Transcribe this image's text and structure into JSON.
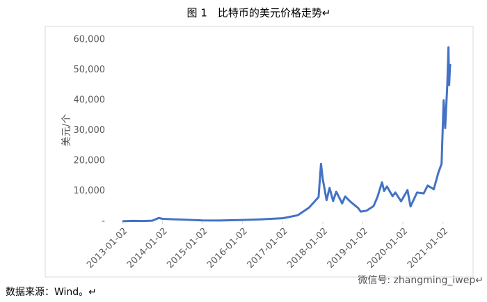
{
  "chart_data": {
    "type": "line",
    "title": "图 1　比特币的美元价格走势↵",
    "y_label": "美元/个",
    "source": "数据来源：Wind。↵",
    "watermark": "微信号: zhangming_iwep↵",
    "x": [
      "2013-01-02",
      "2013-04-09",
      "2013-07-05",
      "2013-10-01",
      "2013-11-30",
      "2014-01-02",
      "2014-06-01",
      "2015-01-02",
      "2015-06-01",
      "2016-01-02",
      "2016-06-17",
      "2017-01-02",
      "2017-05-20",
      "2017-08-30",
      "2017-11-25",
      "2017-12-17",
      "2018-01-02",
      "2018-02-06",
      "2018-03-05",
      "2018-04-06",
      "2018-05-05",
      "2018-06-28",
      "2018-07-25",
      "2018-09-10",
      "2018-11-20",
      "2018-12-15",
      "2019-02-05",
      "2019-04-10",
      "2019-05-15",
      "2019-06-26",
      "2019-07-15",
      "2019-08-10",
      "2019-09-30",
      "2019-10-26",
      "2019-12-17",
      "2020-02-13",
      "2020-03-12",
      "2020-05-10",
      "2020-07-10",
      "2020-08-15",
      "2020-10-10",
      "2020-11-20",
      "2020-12-20",
      "2021-01-08",
      "2021-01-22",
      "2021-02-10",
      "2021-02-21",
      "2021-02-27",
      "2021-03-08"
    ],
    "series": [
      {
        "name": "比特币",
        "color": "#4472c4",
        "values": [
          13,
          140,
          90,
          200,
          1100,
          800,
          600,
          300,
          250,
          430,
          650,
          1000,
          2000,
          4500,
          8000,
          19000,
          14000,
          7000,
          11000,
          6700,
          9800,
          5900,
          8200,
          6500,
          4400,
          3200,
          3500,
          5000,
          8000,
          12900,
          10000,
          11500,
          8300,
          9500,
          6600,
          10300,
          4900,
          9500,
          9200,
          11800,
          10600,
          16000,
          19000,
          40000,
          30800,
          45000,
          57500,
          45000,
          52000
        ]
      }
    ],
    "xlim": [
      "2013-01-02",
      "2021-03-08"
    ],
    "xticks": [
      "2013-01-02",
      "2014-01-02",
      "2015-01-02",
      "2016-01-02",
      "2017-01-02",
      "2018-01-02",
      "2019-01-02",
      "2020-01-02",
      "2021-01-02"
    ],
    "ylim": [
      0,
      60000
    ],
    "yticks": [
      {
        "value": 0,
        "label": "-"
      },
      {
        "value": 10000,
        "label": "10,000"
      },
      {
        "value": 20000,
        "label": "20,000"
      },
      {
        "value": 30000,
        "label": "30,000"
      },
      {
        "value": 40000,
        "label": "40,000"
      },
      {
        "value": 50000,
        "label": "50,000"
      },
      {
        "value": 60000,
        "label": "60,000"
      }
    ]
  }
}
